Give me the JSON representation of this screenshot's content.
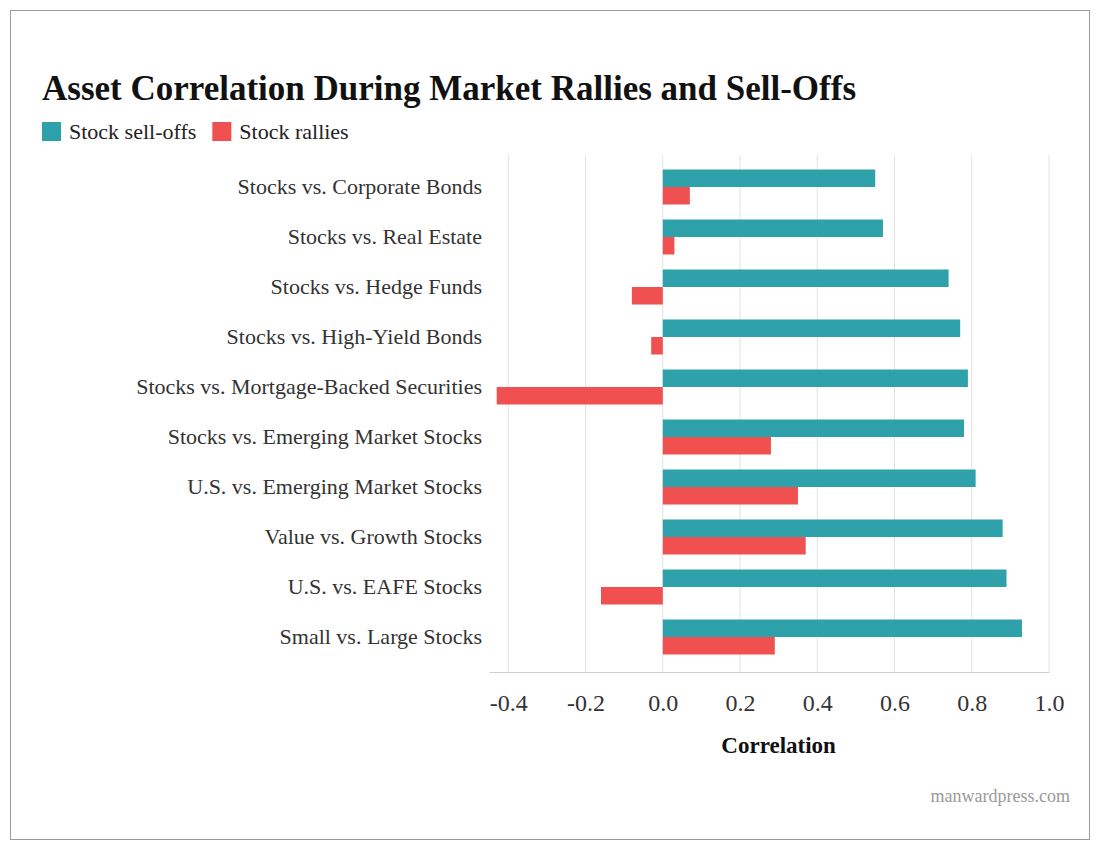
{
  "chart_data": {
    "type": "bar",
    "orientation": "horizontal",
    "title": "Asset Correlation During Market Rallies and Sell-Offs",
    "x_label": "Correlation",
    "source": "manwardpress.com",
    "categories": [
      "Stocks vs. Corporate Bonds",
      "Stocks vs. Real Estate",
      "Stocks vs. Hedge Funds",
      "Stocks vs. High-Yield Bonds",
      "Stocks vs. Mortgage-Backed Securities",
      "Stocks vs. Emerging Market Stocks",
      "U.S. vs. Emerging Market Stocks",
      "Value vs. Growth Stocks",
      "U.S. vs. EAFE Stocks",
      "Small vs. Large Stocks"
    ],
    "series": [
      {
        "name": "Stock sell-offs",
        "color": "#2ea1aa",
        "values": [
          0.55,
          0.57,
          0.74,
          0.77,
          0.79,
          0.78,
          0.81,
          0.88,
          0.89,
          0.93
        ]
      },
      {
        "name": "Stock rallies",
        "color": "#f0504f",
        "values": [
          0.07,
          0.03,
          -0.08,
          -0.03,
          -0.43,
          0.28,
          0.35,
          0.37,
          -0.16,
          0.29
        ]
      }
    ],
    "xlim": [
      -0.45,
      1.0
    ],
    "xticks": [
      -0.4,
      -0.2,
      {
        "value": 0,
        "label": "0.0"
      },
      0.2,
      0.4,
      0.6,
      0.8,
      {
        "value": 1,
        "label": "1.0"
      }
    ],
    "grid": true,
    "legend": "top-left"
  }
}
